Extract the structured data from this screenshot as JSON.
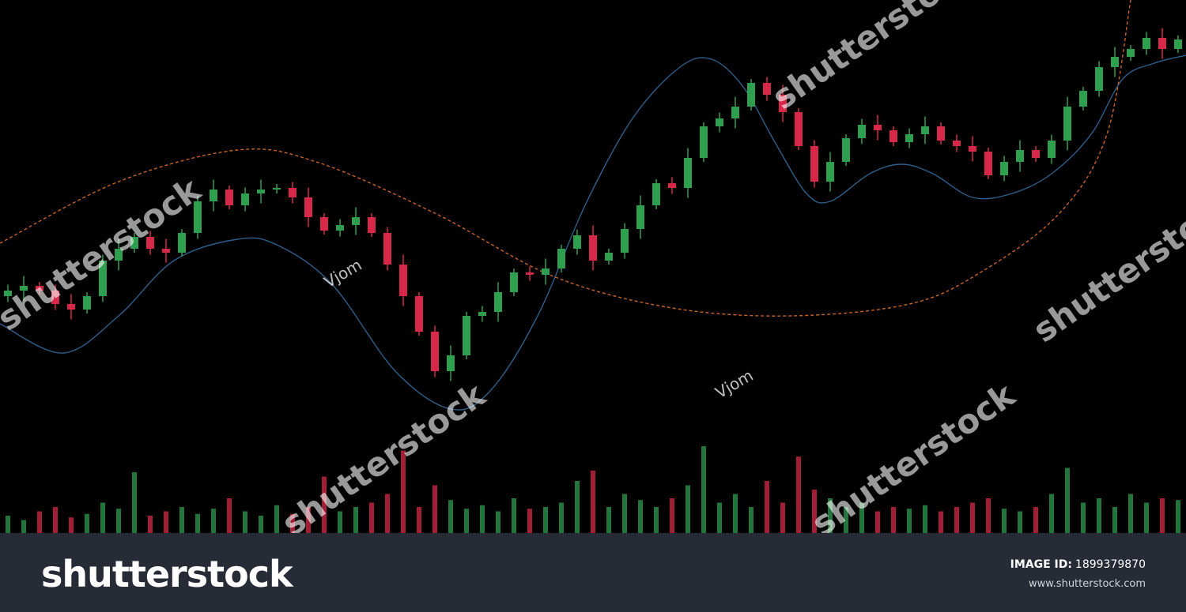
{
  "chart_data": {
    "type": "candlestick",
    "x": [
      0,
      1,
      2,
      3,
      4,
      5,
      6,
      7,
      8,
      9,
      10,
      11,
      12,
      13,
      14,
      15,
      16,
      17,
      18,
      19,
      20,
      21,
      22,
      23,
      24,
      25,
      26,
      27,
      28,
      29,
      30,
      31,
      32,
      33,
      34,
      35,
      36,
      37,
      38,
      39,
      40,
      41,
      42,
      43,
      44,
      45,
      46,
      47,
      48,
      49,
      50,
      51,
      52,
      53,
      54,
      55,
      56,
      57,
      58,
      59,
      60,
      61,
      62,
      63,
      64,
      65,
      66,
      67,
      68,
      69,
      70,
      71,
      72,
      73,
      74
    ],
    "open": [
      33,
      34.4,
      35.6,
      34.4,
      31,
      29.6,
      33,
      42,
      45,
      48,
      45,
      44,
      49,
      57,
      60,
      56,
      59,
      60,
      60.4,
      58,
      53,
      49.6,
      51,
      53,
      49,
      41,
      33,
      24,
      14,
      18,
      28,
      29,
      34,
      39,
      38.4,
      40,
      45,
      48.4,
      42,
      44,
      50,
      56,
      61.6,
      60.4,
      68,
      76,
      78,
      81,
      87,
      84,
      79.6,
      71,
      62,
      67,
      73,
      76.4,
      75,
      72,
      74,
      76,
      72.4,
      71,
      69.6,
      63.6,
      67,
      70,
      68,
      72.4,
      81,
      85,
      91,
      93.6,
      95.6,
      98.4,
      95.6
    ],
    "high": [
      35.9,
      38.1,
      36.6,
      35.9,
      33.5,
      34,
      43.5,
      47.5,
      49,
      49.5,
      47.5,
      50,
      58.5,
      62.5,
      61,
      60.5,
      62.5,
      61.4,
      61.9,
      60.5,
      54,
      52.5,
      55.5,
      54,
      50.5,
      43.5,
      34,
      25.5,
      20.5,
      29,
      30.5,
      36.5,
      40,
      40.5,
      42.5,
      46,
      49.9,
      50.9,
      45,
      51.5,
      58.5,
      62.6,
      63.1,
      70.5,
      77,
      79.5,
      83.5,
      88,
      88.5,
      86.5,
      80.6,
      72.5,
      69.5,
      74,
      77.9,
      78.9,
      76,
      75.5,
      78.5,
      77,
      73.9,
      73.5,
      70.6,
      68.5,
      72.5,
      71,
      73.9,
      83.5,
      86,
      92.5,
      96.1,
      96.6,
      99.9,
      100.9,
      99
    ],
    "low": [
      31.5,
      31.9,
      33.4,
      29.5,
      27.1,
      28.6,
      31.5,
      39.5,
      44,
      43.5,
      41.5,
      43,
      47.5,
      54.5,
      55,
      54.5,
      56.5,
      59,
      56.5,
      50.5,
      48.6,
      48.1,
      48.5,
      48,
      39.5,
      30.5,
      23,
      12.5,
      11.5,
      17,
      26.5,
      26.5,
      33,
      36.9,
      35.9,
      39,
      43.5,
      39.5,
      41,
      42.5,
      47.5,
      55,
      58.9,
      57.9,
      67,
      74.5,
      75.5,
      80,
      82.5,
      77.1,
      70,
      60.5,
      59.5,
      66,
      71.5,
      72.5,
      71,
      70.5,
      71.5,
      71.4,
      69.5,
      67.1,
      62.6,
      62.1,
      64.5,
      67,
      66.5,
      69.9,
      80,
      83.5,
      88.5,
      92.6,
      94.1,
      93.1,
      94.6
    ],
    "close": [
      34.4,
      35.6,
      34.4,
      31,
      29.6,
      33,
      42,
      45,
      48,
      45,
      44,
      49,
      57,
      60,
      56,
      59,
      60,
      60.4,
      58,
      53,
      49.6,
      51,
      53,
      49,
      41,
      33,
      24,
      14,
      18,
      28,
      29,
      34,
      39,
      38.4,
      40,
      45,
      48.4,
      42,
      44,
      50,
      56,
      61.6,
      60.4,
      68,
      76,
      78,
      81,
      87,
      84,
      79.6,
      71,
      62,
      67,
      73,
      76.4,
      75,
      72,
      74,
      76,
      72.4,
      71,
      69.6,
      63.6,
      67,
      70,
      68,
      72.4,
      81,
      85,
      91,
      93.6,
      95.6,
      98.4,
      95.6,
      98
    ],
    "volume": [
      20,
      15,
      25,
      30,
      18,
      22,
      35,
      28,
      70,
      20,
      25,
      30,
      22,
      28,
      40,
      25,
      20,
      32,
      22,
      30,
      65,
      25,
      30,
      35,
      45,
      95,
      30,
      55,
      38,
      28,
      32,
      25,
      40,
      28,
      30,
      35,
      60,
      72,
      30,
      45,
      38,
      30,
      40,
      55,
      100,
      35,
      45,
      30,
      60,
      35,
      88,
      50,
      40,
      30,
      35,
      25,
      30,
      28,
      32,
      25,
      30,
      35,
      40,
      28,
      25,
      30,
      45,
      75,
      35,
      40,
      30,
      45,
      35,
      40,
      38
    ],
    "xlim": [
      -0.5,
      74.5
    ],
    "ylim": [
      0,
      108
    ],
    "volume_ylim": [
      0,
      100
    ],
    "up_color": "#2e9e4f",
    "down_color": "#d8284a",
    "lines": [
      {
        "color": "#2f5f8a",
        "dashed": false,
        "x": [
          -0.5,
          3.5,
          7,
          10.5,
          14.5,
          17,
          20.5,
          24.5,
          28,
          30.5,
          33.5,
          36.5,
          39.5,
          42.5,
          44.5,
          46.5,
          48.5,
          50.5,
          52,
          54.5,
          56.5,
          58.5,
          61,
          63.5,
          66,
          68.5,
          70.5,
          72.5,
          74.5
        ],
        "values": [
          26,
          18.6,
          28,
          42,
          47.4,
          46,
          36,
          14,
          4.4,
          9,
          28,
          56,
          78,
          91,
          93,
          86,
          72,
          59,
          57,
          64,
          66.4,
          64,
          58,
          59,
          64,
          74,
          88,
          92,
          94
        ]
      },
      {
        "color": "#c8642a",
        "dashed": true,
        "x": [
          -0.5,
          7,
          14.5,
          19.5,
          27,
          34.5,
          42,
          49.5,
          57,
          61.5,
          66.5,
          69.5,
          71
        ],
        "values": [
          46.4,
          62,
          70,
          67,
          54,
          38,
          30,
          28,
          31,
          39,
          54,
          74,
          108
        ]
      }
    ]
  },
  "watermark": {
    "brand": "shutterstock",
    "author": "Vjom"
  },
  "footer": {
    "logo": "shutterstock",
    "image_id_label": "IMAGE ID:",
    "image_id": "1899379870",
    "url": "www.shutterstock.com"
  }
}
